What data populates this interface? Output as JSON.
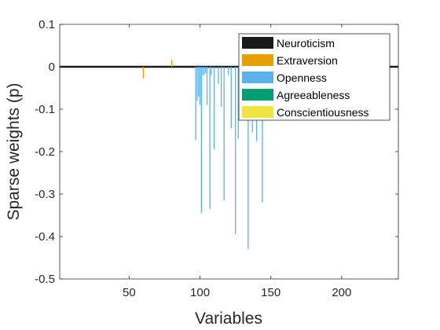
{
  "chart_data": {
    "type": "bar",
    "title": "",
    "xlabel": "Variables",
    "ylabel": "Sparse weights (p)",
    "xlim": [
      1,
      240
    ],
    "ylim": [
      -0.5,
      0.1
    ],
    "xticks": [
      50,
      100,
      150,
      200
    ],
    "yticks": [
      0.1,
      0,
      -0.1,
      -0.2,
      -0.3,
      -0.4,
      -0.5
    ],
    "ytick_labels": [
      "0.1",
      "0",
      "-0.1",
      "-0.2",
      "-0.3",
      "-0.4",
      "-0.5"
    ],
    "grid": false,
    "legend_placement": "top-right",
    "series": [
      {
        "name": "Neuroticism",
        "color": "#1a1a1a",
        "x": [],
        "values": []
      },
      {
        "name": "Extraversion",
        "color": "#e6a000",
        "x": [
          60,
          80
        ],
        "values": [
          -0.027,
          0.016
        ]
      },
      {
        "name": "Openness",
        "color": "#56b4e9",
        "x": [
          97,
          98,
          99,
          100,
          101,
          102,
          103,
          104,
          105,
          107,
          108,
          110,
          113,
          115,
          117,
          120,
          122,
          125,
          127,
          130,
          134,
          137,
          140,
          144
        ],
        "values": [
          -0.173,
          -0.08,
          -0.07,
          -0.09,
          -0.345,
          -0.02,
          -0.02,
          -0.015,
          -0.09,
          -0.335,
          -0.02,
          -0.195,
          -0.04,
          -0.095,
          -0.315,
          -0.02,
          -0.145,
          -0.395,
          -0.17,
          -0.035,
          -0.43,
          -0.155,
          -0.175,
          -0.32
        ]
      },
      {
        "name": "Agreeableness",
        "color": "#009e73",
        "x": [],
        "values": []
      },
      {
        "name": "Conscientiousness",
        "color": "#f0e442",
        "x": [],
        "values": []
      }
    ]
  }
}
